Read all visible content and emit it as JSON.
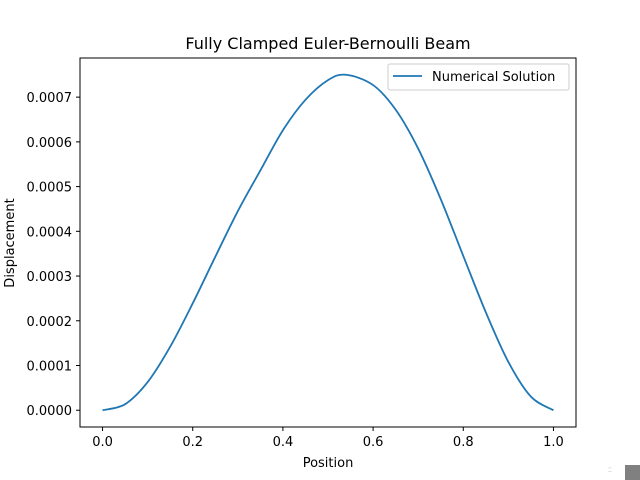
{
  "chart_data": {
    "type": "line",
    "title": "Fully Clamped Euler-Bernoulli Beam",
    "xlabel": "Position",
    "ylabel": "Displacement",
    "xlim": [
      -0.05,
      1.05
    ],
    "ylim": [
      -3.75e-05,
      0.0007875
    ],
    "xticks": [
      0.0,
      0.2,
      0.4,
      0.6,
      0.8,
      1.0
    ],
    "xtick_labels": [
      "0.0",
      "0.2",
      "0.4",
      "0.6",
      "0.8",
      "1.0"
    ],
    "yticks": [
      0.0,
      0.0001,
      0.0002,
      0.0003,
      0.0004,
      0.0005,
      0.0006,
      0.0007
    ],
    "ytick_labels": [
      "0.0000",
      "0.0001",
      "0.0002",
      "0.0003",
      "0.0004",
      "0.0005",
      "0.0006",
      "0.0007"
    ],
    "grid": false,
    "legend_position": "top-right",
    "series": [
      {
        "name": "Numerical Solution",
        "color": "#1f77b4",
        "x": [
          0.0,
          0.05,
          0.1,
          0.15,
          0.2,
          0.25,
          0.3,
          0.35,
          0.4,
          0.45,
          0.5,
          0.54,
          0.6,
          0.65,
          0.7,
          0.75,
          0.8,
          0.85,
          0.9,
          0.95,
          1.0
        ],
        "y": [
          0.0,
          1.35e-05,
          6.29e-05,
          0.000142,
          0.000239,
          0.000343,
          0.000445,
          0.000536,
          0.000626,
          0.000694,
          0.000738,
          0.00075,
          0.000727,
          0.000672,
          0.000585,
          0.000472,
          0.000345,
          0.000219,
          0.000108,
          3.04e-05,
          0.0
        ]
      }
    ]
  }
}
